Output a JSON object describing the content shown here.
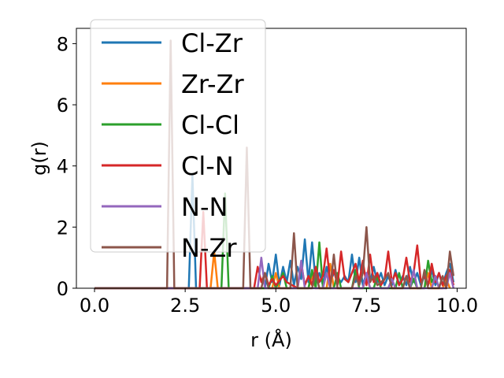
{
  "chart_data": {
    "type": "line",
    "title": "",
    "xlabel": "r (Å)",
    "ylabel": "g(r)",
    "xlim": [
      -0.5,
      10.25
    ],
    "ylim": [
      0,
      8.5
    ],
    "xticks": [
      0.0,
      2.5,
      5.0,
      7.5,
      10.0
    ],
    "xtick_labels": [
      "0.0",
      "2.5",
      "5.0",
      "7.5",
      "10.0"
    ],
    "yticks": [
      0,
      2,
      4,
      6,
      8
    ],
    "ytick_labels": [
      "0",
      "2",
      "4",
      "6",
      "8"
    ],
    "grid": false,
    "legend_position": "upper-left",
    "series": [
      {
        "name": "Cl-Zr",
        "color": "#1f77b4",
        "points": [
          [
            0,
            0
          ],
          [
            2.6,
            0
          ],
          [
            2.7,
            3.7
          ],
          [
            2.8,
            0
          ],
          [
            4.7,
            0
          ],
          [
            4.8,
            0.8
          ],
          [
            4.9,
            0.2
          ],
          [
            5.0,
            1.1
          ],
          [
            5.1,
            0.1
          ],
          [
            5.2,
            0.7
          ],
          [
            5.3,
            0.2
          ],
          [
            5.4,
            0.9
          ],
          [
            5.5,
            0.1
          ],
          [
            5.6,
            0.7
          ],
          [
            5.7,
            0.3
          ],
          [
            5.8,
            1.6
          ],
          [
            5.9,
            0.2
          ],
          [
            6.0,
            1.5
          ],
          [
            6.1,
            0.2
          ],
          [
            6.2,
            0.5
          ],
          [
            6.3,
            0.1
          ],
          [
            6.4,
            0.7
          ],
          [
            6.5,
            0.2
          ],
          [
            6.6,
            0.5
          ],
          [
            6.8,
            0.2
          ],
          [
            6.9,
            0.4
          ],
          [
            7.0,
            0.2
          ],
          [
            7.1,
            1.1
          ],
          [
            7.2,
            0.2
          ],
          [
            7.3,
            1.0
          ],
          [
            7.4,
            0.1
          ],
          [
            7.5,
            0.5
          ],
          [
            7.6,
            0.2
          ],
          [
            7.7,
            0.7
          ],
          [
            7.8,
            0.2
          ],
          [
            7.9,
            0.5
          ],
          [
            8.0,
            0.1
          ],
          [
            8.1,
            0.4
          ],
          [
            8.2,
            0.1
          ],
          [
            8.3,
            0.6
          ],
          [
            8.4,
            0.1
          ],
          [
            8.5,
            0.4
          ],
          [
            8.6,
            0.1
          ],
          [
            8.7,
            0.7
          ],
          [
            8.8,
            0.2
          ],
          [
            8.9,
            0.5
          ],
          [
            9.0,
            0.1
          ],
          [
            9.1,
            0.4
          ],
          [
            9.2,
            0.1
          ],
          [
            9.3,
            0.6
          ],
          [
            9.4,
            0.1
          ],
          [
            9.5,
            0.5
          ],
          [
            9.6,
            0.1
          ],
          [
            9.7,
            0.5
          ],
          [
            9.8,
            0.8
          ],
          [
            9.9,
            0.2
          ]
        ]
      },
      {
        "name": "Zr-Zr",
        "color": "#ff7f0e",
        "points": [
          [
            0,
            0
          ],
          [
            3.2,
            0
          ],
          [
            3.3,
            1.2
          ],
          [
            3.4,
            0
          ],
          [
            4.9,
            0
          ],
          [
            5.0,
            0.5
          ],
          [
            5.1,
            0
          ],
          [
            5.9,
            0
          ],
          [
            6.0,
            0.4
          ],
          [
            6.1,
            0
          ],
          [
            6.4,
            0
          ],
          [
            6.5,
            0.8
          ],
          [
            6.6,
            0
          ],
          [
            7.4,
            0
          ],
          [
            7.5,
            0.4
          ],
          [
            7.6,
            0
          ],
          [
            8.5,
            0
          ],
          [
            8.6,
            0.4
          ],
          [
            8.7,
            0
          ],
          [
            9.1,
            0
          ],
          [
            9.2,
            0.5
          ],
          [
            9.3,
            0
          ],
          [
            9.6,
            0
          ],
          [
            9.7,
            0.3
          ],
          [
            9.8,
            0
          ]
        ]
      },
      {
        "name": "Cl-Cl",
        "color": "#2ca02c",
        "points": [
          [
            0,
            0
          ],
          [
            3.5,
            0
          ],
          [
            3.6,
            3.1
          ],
          [
            3.7,
            0
          ],
          [
            4.8,
            0
          ],
          [
            4.9,
            0.4
          ],
          [
            5.0,
            0
          ],
          [
            5.2,
            0.5
          ],
          [
            5.3,
            0
          ],
          [
            5.9,
            0
          ],
          [
            6.0,
            0.6
          ],
          [
            6.1,
            0
          ],
          [
            6.2,
            1.5
          ],
          [
            6.3,
            0
          ],
          [
            6.6,
            0
          ],
          [
            6.7,
            0.5
          ],
          [
            6.8,
            0
          ],
          [
            7.1,
            0
          ],
          [
            7.2,
            0.6
          ],
          [
            7.3,
            0
          ],
          [
            7.7,
            0
          ],
          [
            7.8,
            0.4
          ],
          [
            7.9,
            0
          ],
          [
            8.3,
            0
          ],
          [
            8.4,
            0.5
          ],
          [
            8.5,
            0
          ],
          [
            8.7,
            0
          ],
          [
            8.8,
            0.3
          ],
          [
            8.9,
            0
          ],
          [
            9.1,
            0
          ],
          [
            9.2,
            0.9
          ],
          [
            9.3,
            0.2
          ],
          [
            9.4,
            0.4
          ],
          [
            9.5,
            0
          ]
        ]
      },
      {
        "name": "Cl-N",
        "color": "#d62728",
        "points": [
          [
            0,
            0
          ],
          [
            2.9,
            0
          ],
          [
            3.0,
            2.5
          ],
          [
            3.1,
            0
          ],
          [
            4.4,
            0
          ],
          [
            4.5,
            0.7
          ],
          [
            4.6,
            0.2
          ],
          [
            4.7,
            0.5
          ],
          [
            4.8,
            0.1
          ],
          [
            4.9,
            0.3
          ],
          [
            5.0,
            0.1
          ],
          [
            5.2,
            0.4
          ],
          [
            5.3,
            0.2
          ],
          [
            5.6,
            0
          ],
          [
            5.7,
            0.8
          ],
          [
            5.8,
            0.1
          ],
          [
            5.9,
            0.4
          ],
          [
            6.0,
            0.1
          ],
          [
            6.1,
            0.7
          ],
          [
            6.2,
            0.2
          ],
          [
            6.3,
            0.4
          ],
          [
            6.4,
            1.3
          ],
          [
            6.5,
            0.2
          ],
          [
            6.6,
            0.6
          ],
          [
            6.7,
            0.1
          ],
          [
            6.8,
            1.2
          ],
          [
            6.9,
            0.3
          ],
          [
            7.0,
            0.2
          ],
          [
            7.2,
            0.8
          ],
          [
            7.3,
            0.2
          ],
          [
            7.4,
            0.9
          ],
          [
            7.5,
            0.1
          ],
          [
            7.6,
            1.1
          ],
          [
            7.7,
            0.2
          ],
          [
            7.8,
            0.5
          ],
          [
            7.9,
            0.1
          ],
          [
            8.0,
            0.3
          ],
          [
            8.1,
            1.2
          ],
          [
            8.2,
            0.2
          ],
          [
            8.3,
            0.5
          ],
          [
            8.4,
            0.1
          ],
          [
            8.5,
            0.3
          ],
          [
            8.6,
            1.0
          ],
          [
            8.7,
            0.2
          ],
          [
            8.8,
            0.5
          ],
          [
            8.9,
            1.4
          ],
          [
            9.0,
            0.2
          ],
          [
            9.1,
            0.4
          ],
          [
            9.2,
            0.1
          ],
          [
            9.3,
            0.8
          ],
          [
            9.4,
            0.2
          ],
          [
            9.5,
            0.5
          ],
          [
            9.6,
            0.1
          ],
          [
            9.7,
            0.4
          ],
          [
            9.8,
            0.6
          ],
          [
            9.9,
            0.1
          ]
        ]
      },
      {
        "name": "N-N",
        "color": "#9467bd",
        "points": [
          [
            0,
            0
          ],
          [
            4.5,
            0
          ],
          [
            4.6,
            1.0
          ],
          [
            4.7,
            0
          ],
          [
            5.6,
            0
          ],
          [
            5.7,
            0.9
          ],
          [
            5.8,
            0
          ],
          [
            6.3,
            0
          ],
          [
            6.4,
            0.5
          ],
          [
            6.5,
            0
          ],
          [
            7.4,
            0
          ],
          [
            7.5,
            0.5
          ],
          [
            7.6,
            0
          ],
          [
            8.1,
            0
          ],
          [
            8.2,
            0.3
          ],
          [
            8.3,
            0
          ],
          [
            8.7,
            0
          ],
          [
            8.8,
            0.6
          ],
          [
            8.9,
            0
          ],
          [
            9.3,
            0
          ],
          [
            9.4,
            0.4
          ],
          [
            9.5,
            0
          ],
          [
            9.7,
            0
          ],
          [
            9.8,
            0.5
          ],
          [
            9.9,
            0
          ]
        ]
      },
      {
        "name": "N-Zr",
        "color": "#8c564b",
        "points": [
          [
            0,
            0
          ],
          [
            2.0,
            0
          ],
          [
            2.1,
            8.1
          ],
          [
            2.2,
            0
          ],
          [
            4.1,
            0
          ],
          [
            4.2,
            4.6
          ],
          [
            4.3,
            0
          ],
          [
            4.6,
            0
          ],
          [
            4.7,
            0.5
          ],
          [
            4.8,
            0
          ],
          [
            5.4,
            0
          ],
          [
            5.5,
            1.8
          ],
          [
            5.6,
            0
          ],
          [
            6.0,
            0
          ],
          [
            6.1,
            0.5
          ],
          [
            6.2,
            0
          ],
          [
            6.5,
            0
          ],
          [
            6.6,
            1.1
          ],
          [
            6.7,
            0
          ],
          [
            7.1,
            0
          ],
          [
            7.2,
            0.4
          ],
          [
            7.3,
            0.1
          ],
          [
            7.4,
            0.5
          ],
          [
            7.5,
            2.0
          ],
          [
            7.6,
            0.2
          ],
          [
            7.7,
            0.4
          ],
          [
            7.8,
            0.1
          ],
          [
            8.0,
            0.3
          ],
          [
            8.1,
            0.5
          ],
          [
            8.2,
            0
          ],
          [
            8.5,
            0
          ],
          [
            8.6,
            0.4
          ],
          [
            8.7,
            0
          ],
          [
            9.0,
            0
          ],
          [
            9.1,
            0.6
          ],
          [
            9.2,
            0
          ],
          [
            9.5,
            0
          ],
          [
            9.6,
            0.4
          ],
          [
            9.7,
            0
          ],
          [
            9.8,
            1.2
          ],
          [
            9.9,
            0.4
          ]
        ]
      }
    ]
  }
}
